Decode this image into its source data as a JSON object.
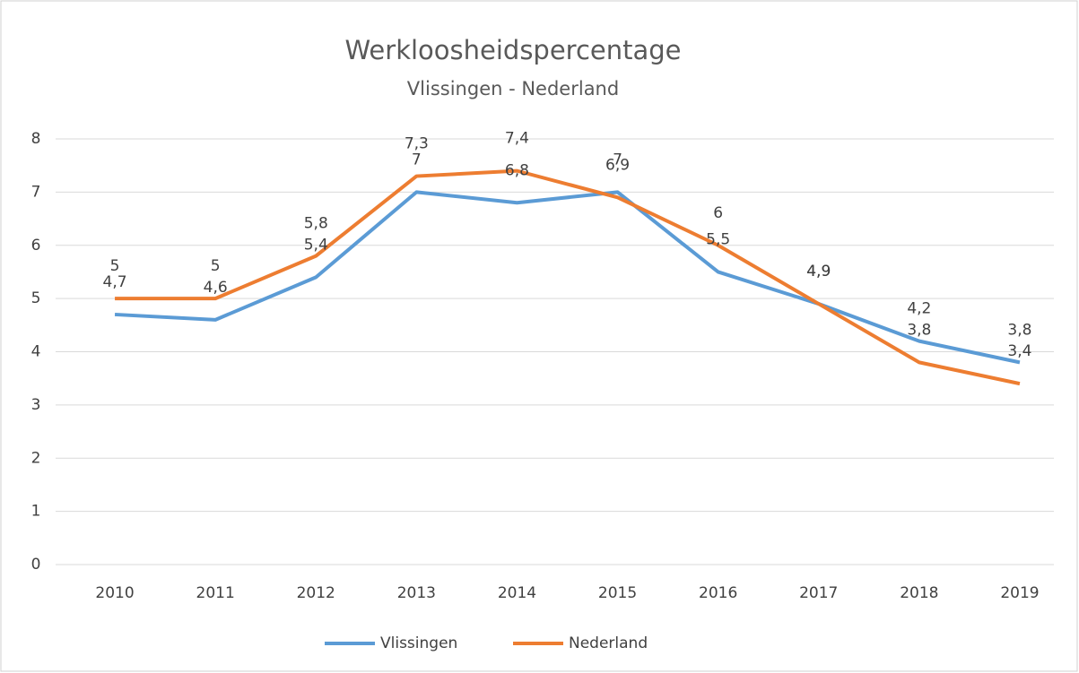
{
  "chart_data": {
    "type": "line",
    "title": "Werkloosheidspercentage",
    "subtitle": "Vlissingen - Nederland",
    "categories": [
      "2010",
      "2011",
      "2012",
      "2013",
      "2014",
      "2015",
      "2016",
      "2017",
      "2018",
      "2019"
    ],
    "series": [
      {
        "name": "Vlissingen",
        "color": "#5b9bd5",
        "values": [
          4.7,
          4.6,
          5.4,
          7,
          6.8,
          7,
          5.5,
          4.9,
          4.2,
          3.8
        ],
        "value_labels": [
          "4,7",
          "4,6",
          "5,4",
          "7",
          "6,8",
          "7",
          "5,5",
          "4,9",
          "4,2",
          "3,8"
        ]
      },
      {
        "name": "Nederland",
        "color": "#ed7d31",
        "values": [
          5,
          5,
          5.8,
          7.3,
          7.4,
          6.9,
          6,
          4.9,
          3.8,
          3.4
        ],
        "value_labels": [
          "5",
          "5",
          "5,8",
          "7,3",
          "7,4",
          "6,9",
          "6",
          "4,9",
          "3,8",
          "3,4"
        ]
      }
    ],
    "ylim": [
      0,
      8
    ],
    "yticks": [
      0,
      1,
      2,
      3,
      4,
      5,
      6,
      7,
      8
    ],
    "grid": true,
    "legend": "bottom"
  }
}
